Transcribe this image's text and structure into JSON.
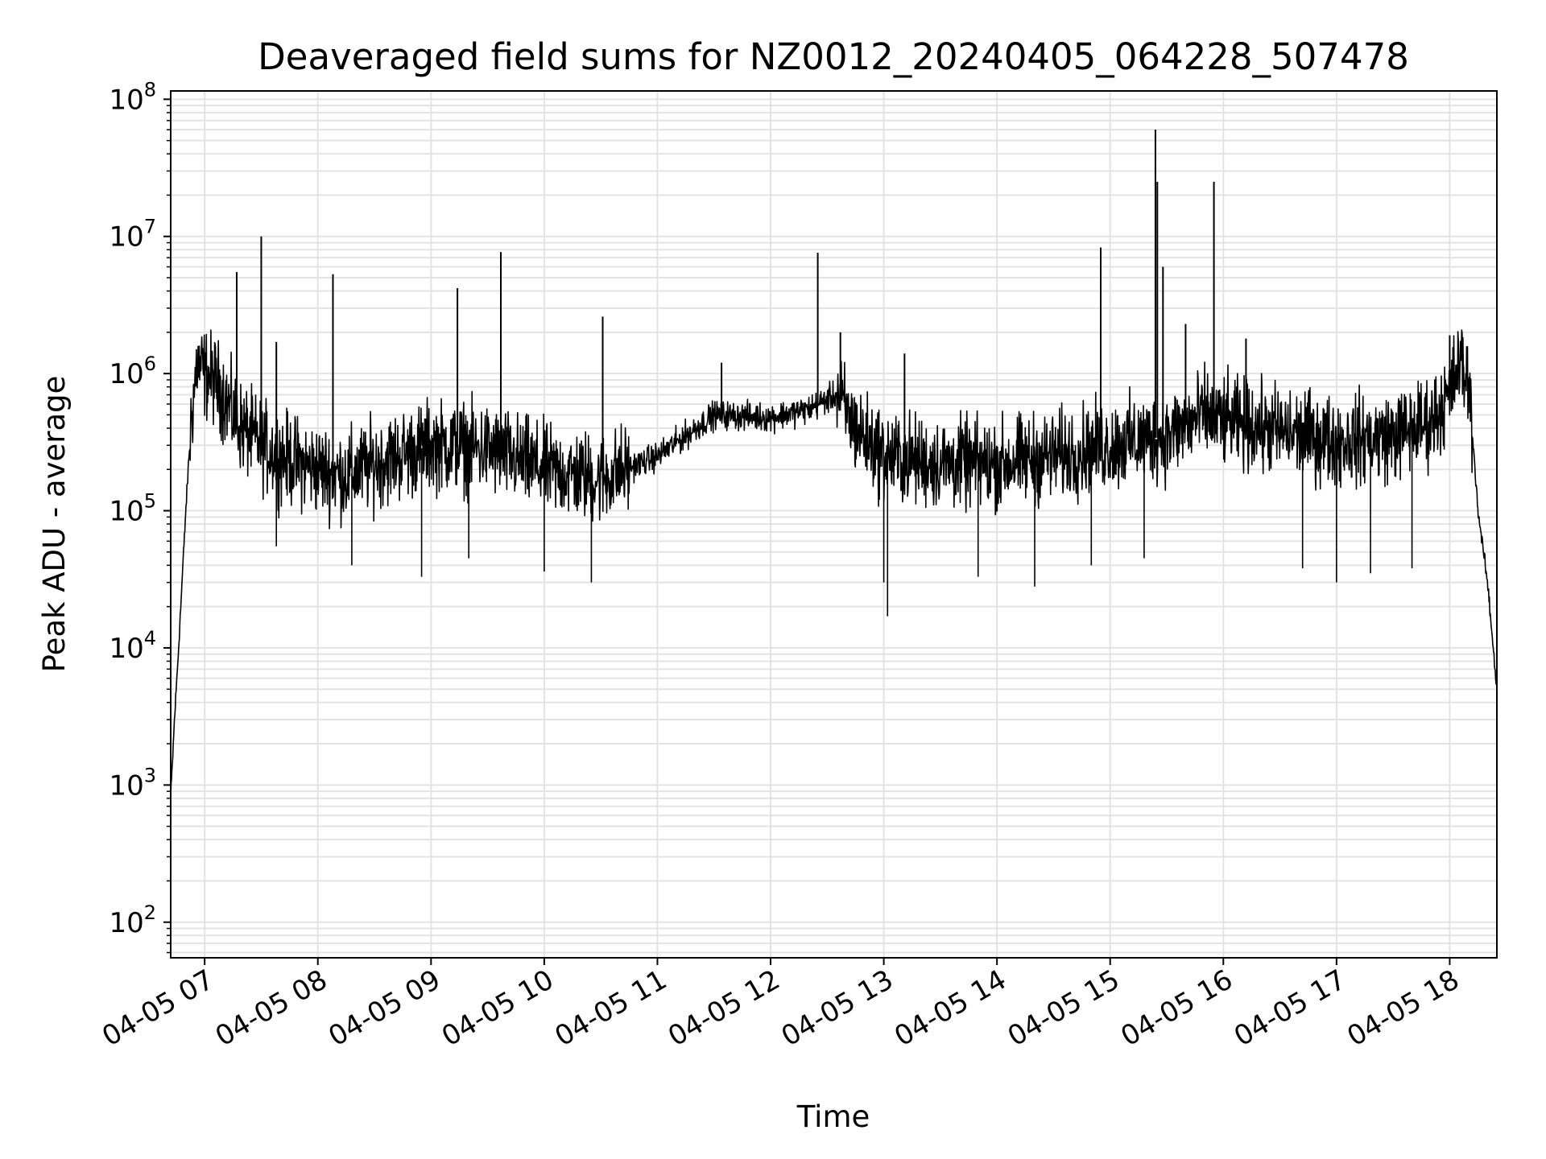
{
  "chart_data": {
    "type": "line",
    "title": "Deaveraged field sums for NZ0012_20240405_064228_507478",
    "xlabel": "Time",
    "ylabel": "Peak ADU - average",
    "yscale": "log",
    "ylim": [
      55,
      115000000
    ],
    "xlim": [
      "2024-04-05 06:42",
      "2024-04-05 18:25"
    ],
    "grid": true,
    "grid_color": "#e3e3e3",
    "line_color": "#000000",
    "x_tick_labels": [
      "04-05 07",
      "04-05 08",
      "04-05 09",
      "04-05 10",
      "04-05 11",
      "04-05 12",
      "04-05 13",
      "04-05 14",
      "04-05 15",
      "04-05 16",
      "04-05 17",
      "04-05 18"
    ],
    "x_tick_values": [
      "2024-04-05 07:00",
      "2024-04-05 08:00",
      "2024-04-05 09:00",
      "2024-04-05 10:00",
      "2024-04-05 11:00",
      "2024-04-05 12:00",
      "2024-04-05 13:00",
      "2024-04-05 14:00",
      "2024-04-05 15:00",
      "2024-04-05 16:00",
      "2024-04-05 17:00",
      "2024-04-05 18:00"
    ],
    "y_tick_values": [
      100,
      1000,
      10000,
      100000,
      1000000,
      10000000,
      100000000
    ],
    "y_tick_labels": [
      {
        "base": "10",
        "exp": "2"
      },
      {
        "base": "10",
        "exp": "3"
      },
      {
        "base": "10",
        "exp": "4"
      },
      {
        "base": "10",
        "exp": "5"
      },
      {
        "base": "10",
        "exp": "6"
      },
      {
        "base": "10",
        "exp": "7"
      },
      {
        "base": "10",
        "exp": "8"
      }
    ],
    "series": [
      {
        "x": [
          "2024-04-05 06:42",
          "2024-04-05 06:44",
          "2024-04-05 06:46",
          "2024-04-05 06:48",
          "2024-04-05 06:50",
          "2024-04-05 06:53",
          "2024-04-05 06:56",
          "2024-04-05 07:00",
          "2024-04-05 07:05",
          "2024-04-05 07:10",
          "2024-04-05 07:15",
          "2024-04-05 07:20",
          "2024-04-05 07:30",
          "2024-04-05 07:40",
          "2024-04-05 08:00",
          "2024-04-05 08:15",
          "2024-04-05 08:30",
          "2024-04-05 09:00",
          "2024-04-05 09:30",
          "2024-04-05 10:00",
          "2024-04-05 10:30",
          "2024-04-05 11:00",
          "2024-04-05 11:30",
          "2024-04-05 12:00",
          "2024-04-05 12:20",
          "2024-04-05 12:35",
          "2024-04-05 12:45",
          "2024-04-05 13:00",
          "2024-04-05 13:30",
          "2024-04-05 14:00",
          "2024-04-05 14:30",
          "2024-04-05 15:00",
          "2024-04-05 15:30",
          "2024-04-05 15:50",
          "2024-04-05 16:00",
          "2024-04-05 16:30",
          "2024-04-05 17:00",
          "2024-04-05 17:30",
          "2024-04-05 17:50",
          "2024-04-05 18:00",
          "2024-04-05 18:05",
          "2024-04-05 18:10",
          "2024-04-05 18:15",
          "2024-04-05 18:20",
          "2024-04-05 18:25"
        ],
        "values": [
          800,
          3000,
          9000,
          30000,
          100000,
          500000,
          1200000,
          1000000,
          900000,
          700000,
          500000,
          400000,
          300000,
          250000,
          200000,
          180000,
          220000,
          300000,
          280000,
          200000,
          170000,
          250000,
          500000,
          480000,
          550000,
          700000,
          400000,
          250000,
          220000,
          220000,
          250000,
          300000,
          350000,
          500000,
          450000,
          380000,
          320000,
          350000,
          450000,
          700000,
          1200000,
          900000,
          100000,
          30000,
          5000
        ]
      }
    ],
    "spikes": [
      {
        "x": "2024-04-05 07:17",
        "y": 5500000
      },
      {
        "x": "2024-04-05 07:30",
        "y": 10000000
      },
      {
        "x": "2024-04-05 07:38",
        "y": 1700000
      },
      {
        "x": "2024-04-05 08:08",
        "y": 5300000
      },
      {
        "x": "2024-04-05 09:14",
        "y": 4200000
      },
      {
        "x": "2024-04-05 09:37",
        "y": 7700000
      },
      {
        "x": "2024-04-05 10:31",
        "y": 2600000
      },
      {
        "x": "2024-04-05 11:34",
        "y": 1200000
      },
      {
        "x": "2024-04-05 12:25",
        "y": 7600000
      },
      {
        "x": "2024-04-05 12:37",
        "y": 2000000
      },
      {
        "x": "2024-04-05 13:11",
        "y": 1400000
      },
      {
        "x": "2024-04-05 14:55",
        "y": 8300000
      },
      {
        "x": "2024-04-05 15:24",
        "y": 60000000
      },
      {
        "x": "2024-04-05 15:25",
        "y": 25000000
      },
      {
        "x": "2024-04-05 15:28",
        "y": 6000000
      },
      {
        "x": "2024-04-05 15:40",
        "y": 2300000
      },
      {
        "x": "2024-04-05 15:55",
        "y": 25000000
      },
      {
        "x": "2024-04-05 16:12",
        "y": 1800000
      },
      {
        "x": "2024-04-05 18:00",
        "y": 1900000
      }
    ],
    "dips": [
      {
        "x": "2024-04-05 07:38",
        "y": 55000
      },
      {
        "x": "2024-04-05 08:18",
        "y": 40000
      },
      {
        "x": "2024-04-05 08:55",
        "y": 33000
      },
      {
        "x": "2024-04-05 09:20",
        "y": 45000
      },
      {
        "x": "2024-04-05 10:00",
        "y": 36000
      },
      {
        "x": "2024-04-05 10:25",
        "y": 30000
      },
      {
        "x": "2024-04-05 13:00",
        "y": 30000
      },
      {
        "x": "2024-04-05 13:02",
        "y": 17000
      },
      {
        "x": "2024-04-05 13:50",
        "y": 33000
      },
      {
        "x": "2024-04-05 14:20",
        "y": 28000
      },
      {
        "x": "2024-04-05 14:50",
        "y": 40000
      },
      {
        "x": "2024-04-05 15:18",
        "y": 45000
      },
      {
        "x": "2024-04-05 16:42",
        "y": 38000
      },
      {
        "x": "2024-04-05 17:00",
        "y": 30000
      },
      {
        "x": "2024-04-05 17:18",
        "y": 35000
      },
      {
        "x": "2024-04-05 17:40",
        "y": 38000
      }
    ]
  }
}
